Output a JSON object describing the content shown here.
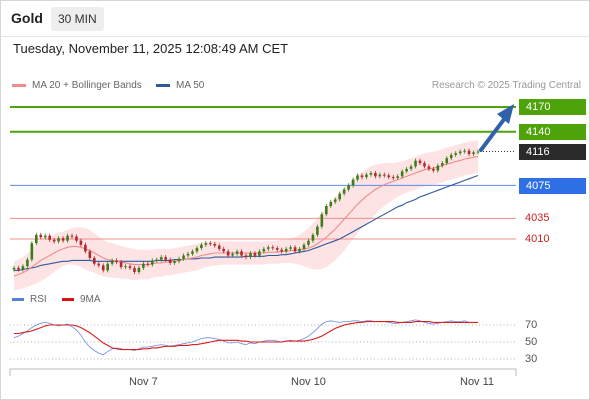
{
  "header": {
    "instrument": "Gold",
    "timeframe": "30 MIN",
    "datetime": "Tuesday, November 11, 2025 12:08:49 AM CET"
  },
  "legend": {
    "ma20": "MA 20 + Bollinger Bands",
    "ma50": "MA 50",
    "rsi": "RSI",
    "ma9": "9MA"
  },
  "credit": "Research © 2025 Trading Central",
  "colors": {
    "green": "#4ea30b",
    "blue": "#2e6fe6",
    "dark": "#2a2a2a",
    "red": "#cc2222",
    "ma20": "#f08c8c",
    "ma50": "#2f5a9e",
    "band": "#fde3e3",
    "arrow": "#2f62a8",
    "up": "#3c7d1a",
    "down": "#b3282d"
  },
  "chart_data": {
    "type": "candlestick",
    "x_ticks": [
      "Nov 7",
      "Nov 10",
      "Nov 11"
    ],
    "levels": [
      {
        "value": "4170",
        "kind": "target",
        "color": "#4ea30b"
      },
      {
        "value": "4140",
        "kind": "target",
        "color": "#4ea30b"
      },
      {
        "value": "4116",
        "kind": "last",
        "color": "#2a2a2a"
      },
      {
        "value": "4075",
        "kind": "pivot",
        "color": "#2e6fe6"
      },
      {
        "value": "4035",
        "kind": "support",
        "color": "#cc2222"
      },
      {
        "value": "4010",
        "kind": "support",
        "color": "#cc2222"
      }
    ],
    "y_range": [
      3955,
      4190
    ],
    "close": [
      3975,
      3973,
      3977,
      3985,
      4005,
      4015,
      4012,
      4014,
      4009,
      4007,
      4011,
      4008,
      4014,
      4013,
      4008,
      4003,
      3995,
      3987,
      3980,
      3978,
      3972,
      3980,
      3984,
      3982,
      3976,
      3977,
      3975,
      3970,
      3975,
      3980,
      3979,
      3984,
      3985,
      3988,
      3985,
      3981,
      3983,
      3986,
      3990,
      3992,
      3995,
      3999,
      4003,
      4005,
      4004,
      4002,
      3998,
      3995,
      3990,
      3992,
      3995,
      3990,
      3988,
      3993,
      3990,
      3995,
      3998,
      4000,
      3999,
      3997,
      3995,
      3998,
      4000,
      3995,
      3998,
      4003,
      4008,
      4015,
      4025,
      4040,
      4050,
      4055,
      4058,
      4065,
      4070,
      4075,
      4082,
      4087,
      4085,
      4088,
      4090,
      4086,
      4088,
      4087,
      4085,
      4084,
      4086,
      4092,
      4095,
      4098,
      4105,
      4102,
      4098,
      4095,
      4093,
      4099,
      4102,
      4108,
      4112,
      4114,
      4116,
      4117,
      4113,
      4115,
      4116
    ],
    "ma20": [
      3965,
      3967,
      3969,
      3972,
      3976,
      3980,
      3984,
      3987,
      3990,
      3993,
      3996,
      3998,
      4000,
      4001,
      4001,
      4000,
      3998,
      3996,
      3993,
      3990,
      3987,
      3985,
      3984,
      3983,
      3982,
      3981,
      3980,
      3979,
      3979,
      3979,
      3979,
      3980,
      3981,
      3981,
      3982,
      3982,
      3983,
      3984,
      3985,
      3986,
      3987,
      3988,
      3990,
      3991,
      3992,
      3993,
      3993,
      3993,
      3993,
      3993,
      3993,
      3993,
      3993,
      3993,
      3993,
      3993,
      3993,
      3994,
      3994,
      3994,
      3995,
      3995,
      3996,
      3996,
      3997,
      3998,
      3999,
      4001,
      4004,
      4008,
      4012,
      4017,
      4022,
      4028,
      4034,
      4040,
      4046,
      4052,
      4057,
      4062,
      4066,
      4070,
      4073,
      4076,
      4078,
      4080,
      4082,
      4084,
      4086,
      4088,
      4090,
      4092,
      4094,
      4095,
      4096,
      4097,
      4099,
      4101,
      4102,
      4104,
      4105,
      4107,
      4108,
      4109,
      4110
    ],
    "ma50": [
      3972,
      3972,
      3973,
      3974,
      3975,
      3976,
      3978,
      3979,
      3980,
      3981,
      3982,
      3983,
      3983,
      3984,
      3984,
      3984,
      3984,
      3984,
      3983,
      3983,
      3983,
      3983,
      3983,
      3983,
      3983,
      3983,
      3983,
      3983,
      3983,
      3983,
      3983,
      3983,
      3984,
      3984,
      3984,
      3984,
      3985,
      3985,
      3985,
      3986,
      3986,
      3986,
      3987,
      3987,
      3987,
      3988,
      3988,
      3988,
      3988,
      3988,
      3988,
      3988,
      3989,
      3989,
      3989,
      3989,
      3989,
      3990,
      3990,
      3990,
      3991,
      3991,
      3992,
      3993,
      3994,
      3995,
      3996,
      3998,
      4000,
      4002,
      4004,
      4006,
      4008,
      4010,
      4013,
      4016,
      4019,
      4022,
      4025,
      4028,
      4031,
      4034,
      4037,
      4040,
      4043,
      4046,
      4049,
      4051,
      4054,
      4056,
      4058,
      4061,
      4063,
      4065,
      4067,
      4069,
      4071,
      4073,
      4075,
      4077,
      4079,
      4081,
      4083,
      4085,
      4087
    ],
    "bb_width": [
      18,
      18,
      19,
      20,
      22,
      24,
      25,
      25,
      24,
      23,
      22,
      21,
      21,
      22,
      23,
      24,
      25,
      25,
      24,
      23,
      22,
      21,
      21,
      20,
      20,
      19,
      19,
      19,
      18,
      18,
      18,
      17,
      17,
      17,
      16,
      16,
      16,
      16,
      16,
      16,
      16,
      16,
      16,
      15,
      15,
      15,
      15,
      14,
      14,
      14,
      14,
      14,
      14,
      14,
      14,
      14,
      14,
      14,
      14,
      14,
      14,
      14,
      15,
      16,
      18,
      21,
      24,
      28,
      31,
      34,
      36,
      37,
      38,
      38,
      38,
      37,
      36,
      35,
      34,
      33,
      32,
      30,
      28,
      26,
      24,
      22,
      21,
      20,
      20,
      20,
      20,
      20,
      20,
      20,
      20,
      20,
      20,
      20,
      20,
      20,
      20,
      20,
      20,
      20,
      20
    ],
    "rsi": {
      "ticks": [
        70,
        50,
        30
      ],
      "values": [
        55,
        57,
        60,
        63,
        67,
        70,
        72,
        73,
        72,
        70,
        69,
        70,
        71,
        68,
        64,
        58,
        50,
        44,
        40,
        37,
        35,
        39,
        42,
        43,
        42,
        41,
        41,
        40,
        42,
        44,
        44,
        45,
        46,
        47,
        46,
        45,
        46,
        47,
        48,
        49,
        50,
        52,
        54,
        55,
        55,
        54,
        53,
        51,
        49,
        49,
        50,
        48,
        47,
        49,
        48,
        50,
        51,
        52,
        52,
        51,
        50,
        51,
        52,
        51,
        52,
        54,
        57,
        61,
        66,
        71,
        74,
        75,
        74,
        73,
        74,
        74,
        75,
        75,
        74,
        75,
        75,
        74,
        74,
        74,
        73,
        72,
        72,
        73,
        74,
        75,
        76,
        75,
        73,
        72,
        71,
        72,
        73,
        74,
        75,
        74,
        74,
        75,
        73,
        73,
        73
      ],
      "ma9": [
        60,
        60,
        61,
        62,
        63,
        65,
        67,
        69,
        70,
        70,
        70,
        70,
        70,
        70,
        69,
        67,
        64,
        61,
        57,
        53,
        49,
        46,
        43,
        42,
        41,
        41,
        41,
        41,
        41,
        42,
        42,
        43,
        43,
        44,
        45,
        45,
        45,
        46,
        46,
        46,
        47,
        47,
        48,
        49,
        50,
        51,
        52,
        52,
        52,
        52,
        52,
        51,
        51,
        50,
        50,
        50,
        50,
        50,
        50,
        50,
        50,
        51,
        51,
        51,
        51,
        51,
        52,
        53,
        55,
        57,
        60,
        63,
        66,
        68,
        70,
        71,
        72,
        73,
        73,
        74,
        74,
        74,
        74,
        74,
        74,
        74,
        73,
        73,
        73,
        73,
        74,
        74,
        74,
        74,
        73,
        73,
        73,
        73,
        73,
        73,
        73,
        73,
        73,
        73,
        73
      ]
    }
  }
}
